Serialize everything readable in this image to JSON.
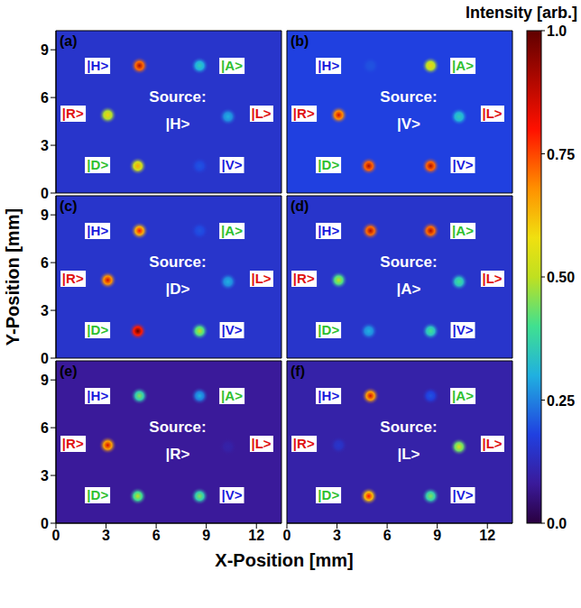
{
  "x_label": "X-Position [mm]",
  "y_label": "Y-Position [mm]",
  "colorbar": {
    "title": "Intensity [arb.]",
    "range": [
      0,
      1
    ],
    "ticks": [
      {
        "value": 0,
        "label": "0.0"
      },
      0.25,
      {
        "value": 0.5,
        "label": "0.50"
      },
      0.75,
      {
        "value": 1,
        "label": "1.0"
      }
    ]
  },
  "chart_data": [
    {
      "type": "heatmap",
      "title": "(a)",
      "source_label": "Source:",
      "source": "|H>",
      "background": 0.15,
      "tick_labels": "y",
      "xlim": [
        0,
        13.5
      ],
      "ylim": [
        0,
        10.2
      ],
      "xticks": [
        0,
        3,
        6,
        9,
        12
      ],
      "yticks": [
        0,
        3,
        6,
        9
      ],
      "labels": [
        {
          "text": "|H>",
          "color": "#1a1adc"
        },
        {
          "text": "|A>",
          "color": "#2fc02f"
        },
        {
          "text": "|R>",
          "color": "#e01010"
        },
        {
          "text": "|L>",
          "color": "#e01010"
        },
        {
          "text": "|D>",
          "color": "#2fc02f"
        },
        {
          "text": "|V>",
          "color": "#1a1adc"
        }
      ],
      "spots": {
        "x": [
          5,
          8.6,
          3.1,
          10.3,
          4.9,
          8.6
        ],
        "y": [
          8,
          8,
          4.9,
          4.8,
          1.7,
          1.7
        ],
        "values": [
          0.9,
          0.35,
          0.6,
          0.3,
          0.65,
          0.2
        ]
      }
    },
    {
      "type": "heatmap",
      "title": "(b)",
      "source_label": "Source:",
      "source": "|V>",
      "background": 0.18,
      "tick_labels": false,
      "xlim": [
        0,
        13.5
      ],
      "ylim": [
        0,
        10.2
      ],
      "xticks": [
        0,
        3,
        6,
        9,
        12
      ],
      "yticks": [
        0,
        3,
        6,
        9
      ],
      "labels": [
        {
          "text": "|H>",
          "color": "#1a1adc"
        },
        {
          "text": "|A>",
          "color": "#2fc02f"
        },
        {
          "text": "|R>",
          "color": "#e01010"
        },
        {
          "text": "|L>",
          "color": "#e01010"
        },
        {
          "text": "|D>",
          "color": "#2fc02f"
        },
        {
          "text": "|V>",
          "color": "#1a1adc"
        }
      ],
      "spots": {
        "x": [
          5,
          8.6,
          3.1,
          10.3,
          4.9,
          8.6
        ],
        "y": [
          8,
          8,
          4.9,
          4.8,
          1.7,
          1.7
        ],
        "values": [
          0.2,
          0.6,
          0.85,
          0.35,
          0.9,
          0.9
        ]
      }
    },
    {
      "type": "heatmap",
      "title": "(c)",
      "source_label": "Source:",
      "source": "|D>",
      "background": 0.15,
      "tick_labels": "y",
      "xlim": [
        0,
        13.5
      ],
      "ylim": [
        0,
        10.2
      ],
      "xticks": [
        0,
        3,
        6,
        9,
        12
      ],
      "yticks": [
        0,
        3,
        6,
        9
      ],
      "labels": [
        {
          "text": "|H>",
          "color": "#1a1adc"
        },
        {
          "text": "|A>",
          "color": "#2fc02f"
        },
        {
          "text": "|R>",
          "color": "#e01010"
        },
        {
          "text": "|L>",
          "color": "#e01010"
        },
        {
          "text": "|D>",
          "color": "#2fc02f"
        },
        {
          "text": "|V>",
          "color": "#1a1adc"
        }
      ],
      "spots": {
        "x": [
          5,
          8.6,
          3.1,
          10.3,
          4.9,
          8.6
        ],
        "y": [
          8,
          8,
          4.9,
          4.8,
          1.7,
          1.7
        ],
        "values": [
          0.8,
          0.2,
          0.85,
          0.3,
          1.0,
          0.5
        ]
      }
    },
    {
      "type": "heatmap",
      "title": "(d)",
      "source_label": "Source:",
      "source": "|A>",
      "background": 0.15,
      "tick_labels": false,
      "xlim": [
        0,
        13.5
      ],
      "ylim": [
        0,
        10.2
      ],
      "xticks": [
        0,
        3,
        6,
        9,
        12
      ],
      "yticks": [
        0,
        3,
        6,
        9
      ],
      "labels": [
        {
          "text": "|H>",
          "color": "#1a1adc"
        },
        {
          "text": "|A>",
          "color": "#2fc02f"
        },
        {
          "text": "|R>",
          "color": "#e01010"
        },
        {
          "text": "|L>",
          "color": "#e01010"
        },
        {
          "text": "|D>",
          "color": "#2fc02f"
        },
        {
          "text": "|V>",
          "color": "#1a1adc"
        }
      ],
      "spots": {
        "x": [
          5,
          8.6,
          3.1,
          10.3,
          4.9,
          8.6
        ],
        "y": [
          8,
          8,
          4.9,
          4.8,
          1.7,
          1.7
        ],
        "values": [
          0.9,
          0.9,
          0.5,
          0.4,
          0.3,
          0.4
        ]
      }
    },
    {
      "type": "heatmap",
      "title": "(e)",
      "source_label": "Source:",
      "source": "|R>",
      "background": 0.08,
      "tick_labels": true,
      "xlim": [
        0,
        13.5
      ],
      "ylim": [
        0,
        10.2
      ],
      "xticks": [
        0,
        3,
        6,
        9,
        12
      ],
      "yticks": [
        0,
        3,
        6,
        9
      ],
      "labels": [
        {
          "text": "|H>",
          "color": "#1a1adc"
        },
        {
          "text": "|A>",
          "color": "#2fc02f"
        },
        {
          "text": "|R>",
          "color": "#e01010"
        },
        {
          "text": "|L>",
          "color": "#e01010"
        },
        {
          "text": "|D>",
          "color": "#2fc02f"
        },
        {
          "text": "|V>",
          "color": "#1a1adc"
        }
      ],
      "spots": {
        "x": [
          5,
          8.6,
          3.1,
          10.3,
          4.9,
          8.6
        ],
        "y": [
          8,
          8,
          4.9,
          4.8,
          1.7,
          1.7
        ],
        "values": [
          0.45,
          0.3,
          0.85,
          0.1,
          0.5,
          0.45
        ]
      }
    },
    {
      "type": "heatmap",
      "title": "(f)",
      "source_label": "Source:",
      "source": "|L>",
      "background": 0.1,
      "tick_labels": "x",
      "xlim": [
        0,
        13.5
      ],
      "ylim": [
        0,
        10.2
      ],
      "xticks": [
        0,
        3,
        6,
        9,
        12
      ],
      "yticks": [
        0,
        3,
        6,
        9
      ],
      "labels": [
        {
          "text": "|H>",
          "color": "#1a1adc"
        },
        {
          "text": "|A>",
          "color": "#2fc02f"
        },
        {
          "text": "|R>",
          "color": "#e01010"
        },
        {
          "text": "|L>",
          "color": "#e01010"
        },
        {
          "text": "|D>",
          "color": "#2fc02f"
        },
        {
          "text": "|V>",
          "color": "#1a1adc"
        }
      ],
      "spots": {
        "x": [
          5,
          8.6,
          3.1,
          10.3,
          4.9,
          8.6
        ],
        "y": [
          8,
          8,
          4.9,
          4.8,
          1.7,
          1.7
        ],
        "values": [
          0.85,
          0.2,
          0.15,
          0.55,
          0.8,
          0.45
        ]
      }
    }
  ]
}
